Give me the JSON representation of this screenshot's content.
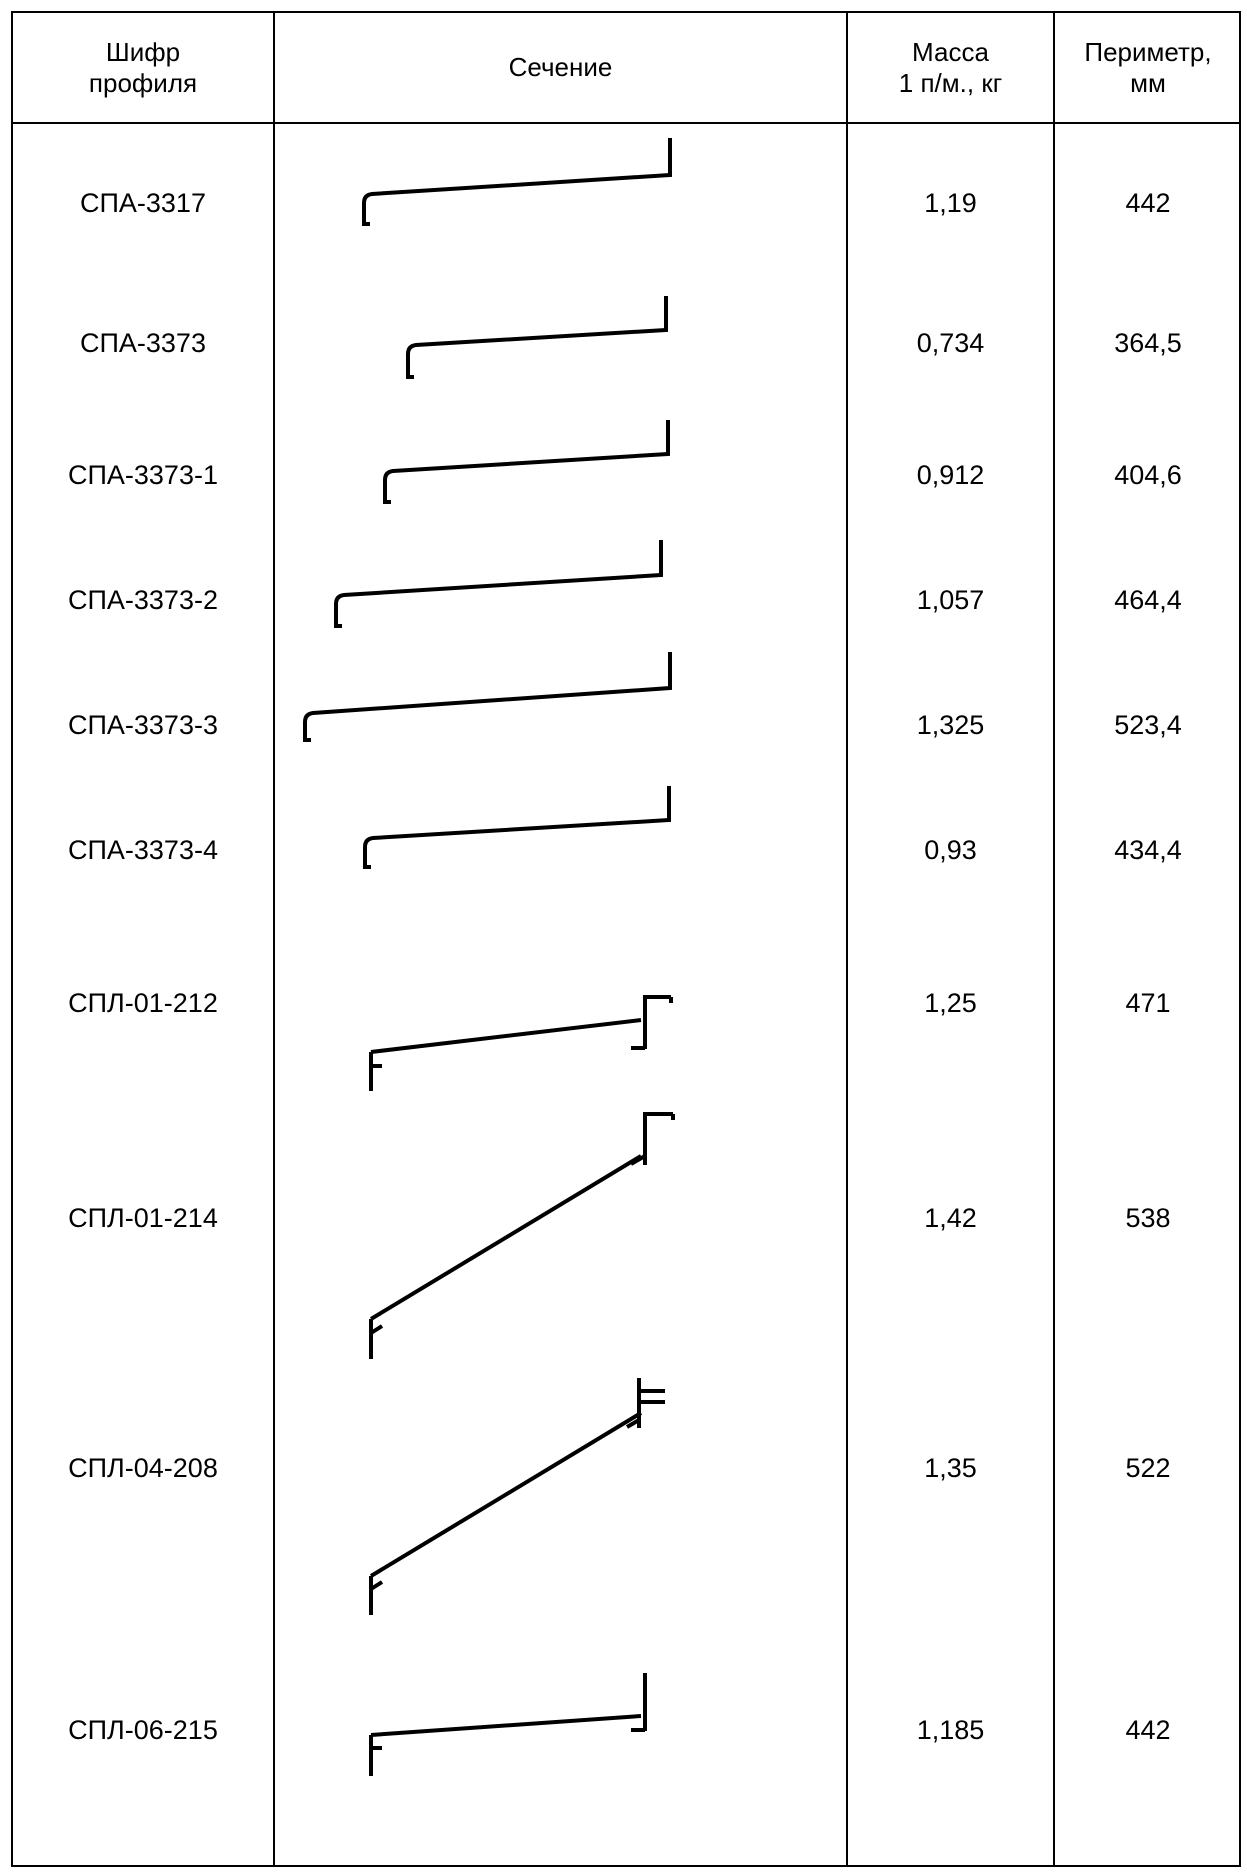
{
  "table": {
    "headers": {
      "code": "Шифр\nпрофиля",
      "section": "Сечение",
      "mass": "Масса\n1 п/м., кг",
      "perimeter": "Периметр,\nмм"
    },
    "rows": [
      {
        "code": "СПА-3317",
        "mass": "1,19",
        "perimeter": "442"
      },
      {
        "code": "СПА-3373",
        "mass": "0,734",
        "perimeter": "364,5"
      },
      {
        "code": "СПА-3373-1",
        "mass": "0,912",
        "perimeter": "404,6"
      },
      {
        "code": "СПА-3373-2",
        "mass": "1,057",
        "perimeter": "464,4"
      },
      {
        "code": "СПА-3373-3",
        "mass": "1,325",
        "perimeter": "523,4"
      },
      {
        "code": "СПА-3373-4",
        "mass": "0,93",
        "perimeter": "434,4"
      },
      {
        "code": "СПЛ-01-212",
        "mass": "1,25",
        "perimeter": "471"
      },
      {
        "code": "СПЛ-01-214",
        "mass": "1,42",
        "perimeter": "538"
      },
      {
        "code": "СПЛ-04-208",
        "mass": "1,35",
        "perimeter": "522"
      },
      {
        "code": "СПЛ-06-215",
        "mass": "1,185",
        "perimeter": "442"
      }
    ]
  }
}
